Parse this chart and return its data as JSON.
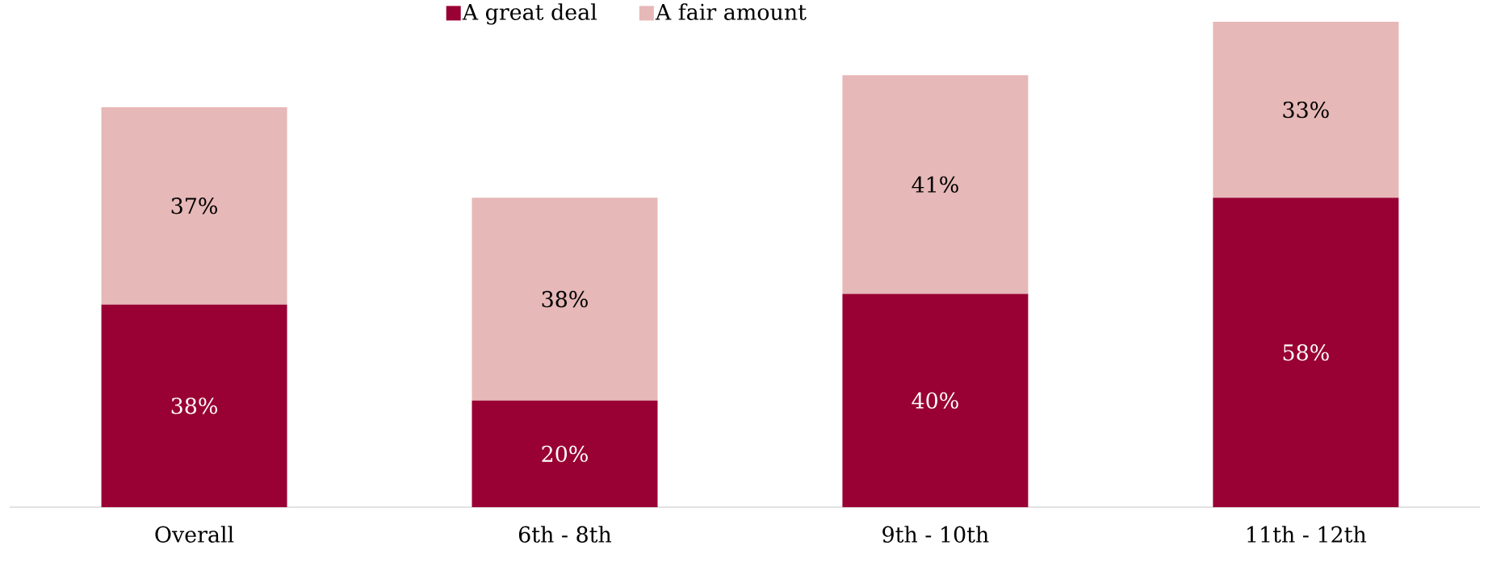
{
  "chart_data": {
    "type": "bar",
    "stacked": true,
    "categories": [
      "Overall",
      "6th - 8th",
      "9th - 10th",
      "11th - 12th"
    ],
    "series": [
      {
        "name": "A great deal",
        "color": "#990033",
        "values": [
          38,
          20,
          40,
          58
        ],
        "value_labels": [
          "38%",
          "20%",
          "40%",
          "58%"
        ]
      },
      {
        "name": "A fair amount",
        "color": "#e6b8b7",
        "values": [
          37,
          38,
          41,
          33
        ],
        "value_labels": [
          "37%",
          "38%",
          "41%",
          "33%"
        ]
      }
    ],
    "tick_labels": "x",
    "grid": false,
    "legend": "top"
  }
}
